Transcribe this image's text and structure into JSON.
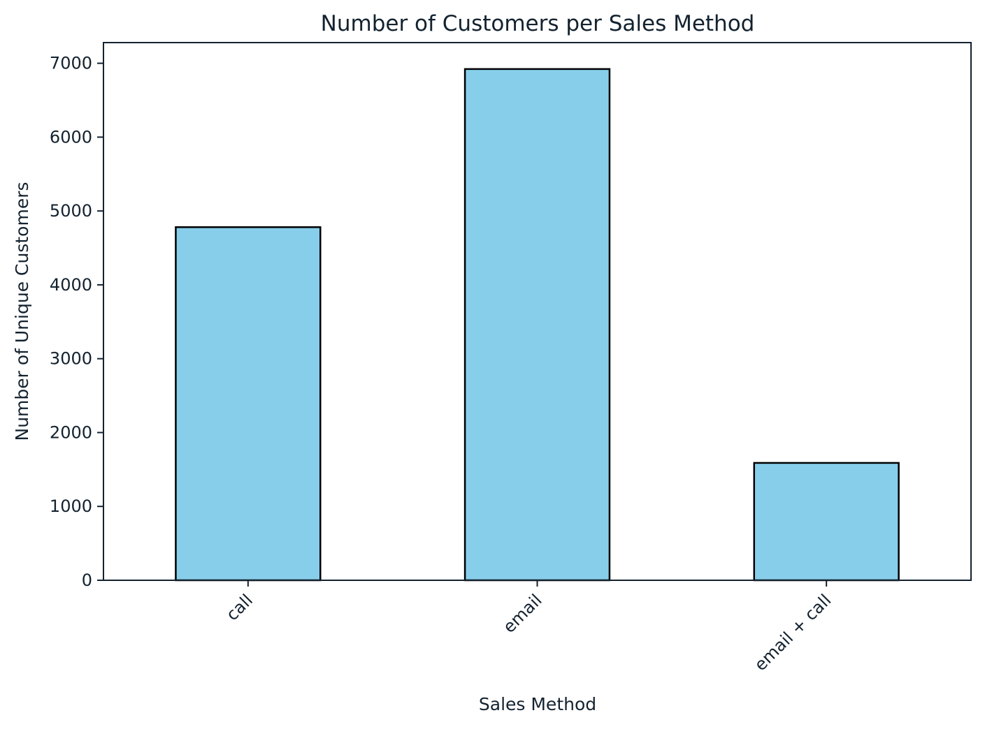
{
  "chart_data": {
    "type": "bar",
    "title": "Number of Customers per Sales Method",
    "xlabel": "Sales Method",
    "ylabel": "Number of Unique Customers",
    "categories": [
      "call",
      "email",
      "email + call"
    ],
    "values": [
      4781,
      6922,
      1589
    ],
    "ylim": [
      0,
      7280
    ],
    "yticks": [
      0,
      1000,
      2000,
      3000,
      4000,
      5000,
      6000,
      7000
    ],
    "ytick_labels": [
      "0",
      "1000",
      "2000",
      "3000",
      "4000",
      "5000",
      "6000",
      "7000"
    ],
    "xtick_rotation_deg": 45,
    "grid": false,
    "legend": "none",
    "colors": {
      "bar_fill": "#87ceeb",
      "bar_edge": "#000000",
      "axes": "#13222f",
      "text": "#13222f"
    }
  }
}
